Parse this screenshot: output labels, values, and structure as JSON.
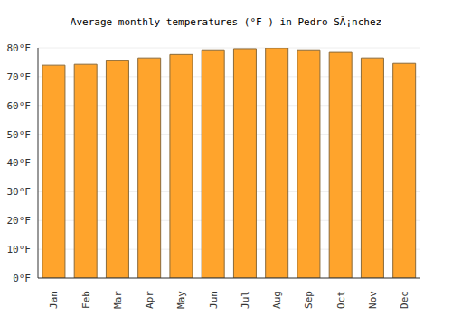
{
  "chart_data": {
    "type": "bar",
    "title": "Average monthly temperatures (°F ) in Pedro SÃ¡nchez",
    "categories": [
      "Jan",
      "Feb",
      "Mar",
      "Apr",
      "May",
      "Jun",
      "Jul",
      "Aug",
      "Sep",
      "Oct",
      "Nov",
      "Dec"
    ],
    "values": [
      74,
      74.3,
      75.5,
      76.5,
      77.7,
      79.3,
      79.7,
      80,
      79.3,
      78.4,
      76.5,
      74.6
    ],
    "color": "#ffa42c",
    "ylim": [
      0,
      80
    ],
    "yticks": [
      {
        "value": 0,
        "label": "0°F"
      },
      {
        "value": 10,
        "label": "10°F"
      },
      {
        "value": 20,
        "label": "20°F"
      },
      {
        "value": 30,
        "label": "30°F"
      },
      {
        "value": 40,
        "label": "40°F"
      },
      {
        "value": 50,
        "label": "50°F"
      },
      {
        "value": 60,
        "label": "60°F"
      },
      {
        "value": 70,
        "label": "70°F"
      },
      {
        "value": 80,
        "label": "80°F"
      }
    ],
    "grid": true
  }
}
